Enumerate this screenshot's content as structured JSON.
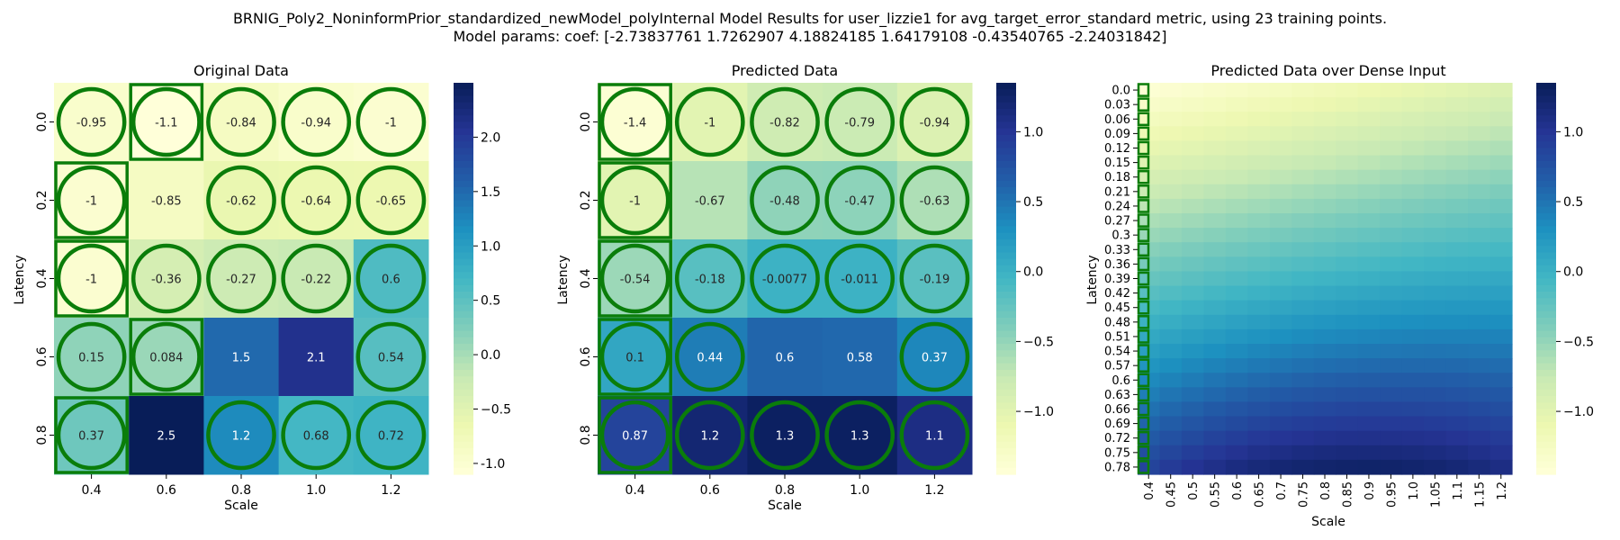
{
  "figure": {
    "title_line1": "BRNIG_Poly2_NoninformPrior_standardized_newModel_polyInternal Model Results for user_lizzie1 for avg_target_error_standard metric, using 23 training points.",
    "title_line2": "Model params: coef: [-2.73837761  1.7262907   4.18824185  1.64179108 -0.43540765 -2.24031842]"
  },
  "colormap": {
    "name": "YlGnBu",
    "stops": [
      "#ffffd9",
      "#edf8b1",
      "#c7e9b4",
      "#7fcdbb",
      "#41b6c4",
      "#1d91c0",
      "#225ea8",
      "#253494",
      "#081d58"
    ]
  },
  "marker_color": "#0a7d0a",
  "chart_data": [
    {
      "type": "heatmap",
      "title": "Original Data",
      "xlabel": "Scale",
      "ylabel": "Latency",
      "x_categories": [
        "0.4",
        "0.6",
        "0.8",
        "1.0",
        "1.2"
      ],
      "y_categories": [
        "0.0",
        "0.2",
        "0.4",
        "0.6",
        "0.8"
      ],
      "values": [
        [
          -0.95,
          -1.1,
          -0.84,
          -0.94,
          -1
        ],
        [
          -1,
          -0.85,
          -0.62,
          -0.64,
          -0.65
        ],
        [
          -1,
          -0.36,
          -0.27,
          -0.22,
          0.6
        ],
        [
          0.15,
          0.084,
          1.5,
          2.1,
          0.54
        ],
        [
          0.37,
          2.5,
          1.2,
          0.68,
          0.72
        ]
      ],
      "annotations": [
        [
          "-0.95",
          "-1.1",
          "-0.84",
          "-0.94",
          "-1"
        ],
        [
          "-1",
          "-0.85",
          "-0.62",
          "-0.64",
          "-0.65"
        ],
        [
          "-1",
          "-0.36",
          "-0.27",
          "-0.22",
          "0.6"
        ],
        [
          "0.15",
          "0.084",
          "1.5",
          "2.1",
          "0.54"
        ],
        [
          "0.37",
          "2.5",
          "1.2",
          "0.68",
          "0.72"
        ]
      ],
      "circled_cells": [
        [
          0,
          0
        ],
        [
          0,
          1
        ],
        [
          0,
          2
        ],
        [
          0,
          3
        ],
        [
          0,
          4
        ],
        [
          1,
          0
        ],
        [
          1,
          2
        ],
        [
          1,
          3
        ],
        [
          1,
          4
        ],
        [
          2,
          0
        ],
        [
          2,
          1
        ],
        [
          2,
          2
        ],
        [
          2,
          3
        ],
        [
          2,
          4
        ],
        [
          3,
          0
        ],
        [
          3,
          1
        ],
        [
          3,
          4
        ],
        [
          4,
          0
        ],
        [
          4,
          2
        ],
        [
          4,
          3
        ],
        [
          4,
          4
        ]
      ],
      "boxed_cells": [
        [
          0,
          1
        ],
        [
          1,
          0
        ],
        [
          2,
          0
        ],
        [
          3,
          1
        ],
        [
          4,
          0
        ]
      ],
      "vmin": -1.1,
      "vmax": 2.5,
      "colorbar_ticks": [
        "-1.0",
        "−0.5",
        "0.0",
        "0.5",
        "1.0",
        "1.5",
        "2.0"
      ],
      "colorbar_tick_values": [
        -1.0,
        -0.5,
        0.0,
        0.5,
        1.0,
        1.5,
        2.0
      ]
    },
    {
      "type": "heatmap",
      "title": "Predicted Data",
      "xlabel": "Scale",
      "ylabel": "Latency",
      "x_categories": [
        "0.4",
        "0.6",
        "0.8",
        "1.0",
        "1.2"
      ],
      "y_categories": [
        "0.0",
        "0.2",
        "0.4",
        "0.6",
        "0.8"
      ],
      "values": [
        [
          -1.4,
          -1,
          -0.82,
          -0.79,
          -0.94
        ],
        [
          -1,
          -0.67,
          -0.48,
          -0.47,
          -0.63
        ],
        [
          -0.54,
          -0.18,
          -0.0077,
          -0.011,
          -0.19
        ],
        [
          0.1,
          0.44,
          0.6,
          0.58,
          0.37
        ],
        [
          0.87,
          1.2,
          1.3,
          1.3,
          1.1
        ]
      ],
      "annotations": [
        [
          "-1.4",
          "-1",
          "-0.82",
          "-0.79",
          "-0.94"
        ],
        [
          "-1",
          "-0.67",
          "-0.48",
          "-0.47",
          "-0.63"
        ],
        [
          "-0.54",
          "-0.18",
          "-0.0077",
          "-0.011",
          "-0.19"
        ],
        [
          "0.1",
          "0.44",
          "0.6",
          "0.58",
          "0.37"
        ],
        [
          "0.87",
          "1.2",
          "1.3",
          "1.3",
          "1.1"
        ]
      ],
      "circled_cells": [
        [
          0,
          0
        ],
        [
          0,
          1
        ],
        [
          0,
          2
        ],
        [
          0,
          3
        ],
        [
          0,
          4
        ],
        [
          1,
          0
        ],
        [
          1,
          2
        ],
        [
          1,
          3
        ],
        [
          1,
          4
        ],
        [
          2,
          0
        ],
        [
          2,
          1
        ],
        [
          2,
          2
        ],
        [
          2,
          3
        ],
        [
          2,
          4
        ],
        [
          3,
          0
        ],
        [
          3,
          1
        ],
        [
          3,
          4
        ],
        [
          4,
          0
        ],
        [
          4,
          1
        ],
        [
          4,
          2
        ],
        [
          4,
          3
        ],
        [
          4,
          4
        ]
      ],
      "boxed_cells": [
        [
          0,
          0
        ],
        [
          1,
          0
        ],
        [
          2,
          0
        ],
        [
          3,
          0
        ],
        [
          4,
          0
        ]
      ],
      "vmin": -1.45,
      "vmax": 1.35,
      "colorbar_ticks": [
        "−1.0",
        "−0.5",
        "0.0",
        "0.5",
        "1.0"
      ],
      "colorbar_tick_values": [
        -1.0,
        -0.5,
        0.0,
        0.5,
        1.0
      ]
    },
    {
      "type": "heatmap",
      "title": "Predicted Data over Dense Input",
      "xlabel": "Scale",
      "ylabel": "Latency",
      "x_categories": [
        "0.4",
        "0.45",
        "0.5",
        "0.55",
        "0.6",
        "0.65",
        "0.7",
        "0.75",
        "0.8",
        "0.85",
        "0.9",
        "0.95",
        "1.0",
        "1.05",
        "1.1",
        "1.15",
        "1.2"
      ],
      "y_categories": [
        "0.0",
        "0.03",
        "0.06",
        "0.09",
        "0.12",
        "0.15",
        "0.18",
        "0.21",
        "0.24",
        "0.27",
        "0.3",
        "0.33",
        "0.36",
        "0.39",
        "0.42",
        "0.45",
        "0.48",
        "0.51",
        "0.54",
        "0.57",
        "0.6",
        "0.63",
        "0.66",
        "0.69",
        "0.72",
        "0.75",
        "0.78"
      ],
      "corner_values": {
        "top_left": -1.4,
        "top_right": -0.94,
        "bottom_left": 0.87,
        "bottom_right": 1.1,
        "peak": 1.35
      },
      "marked_column": "0.4",
      "vmin": -1.45,
      "vmax": 1.35,
      "colorbar_ticks": [
        "−1.0",
        "−0.5",
        "0.0",
        "0.5",
        "1.0"
      ],
      "colorbar_tick_values": [
        -1.0,
        -0.5,
        0.0,
        0.5,
        1.0
      ]
    }
  ]
}
